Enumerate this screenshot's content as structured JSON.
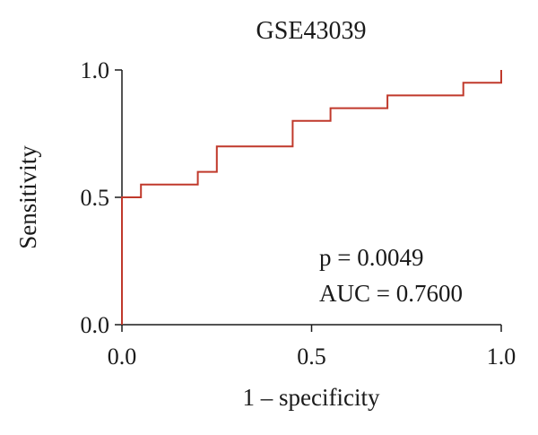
{
  "chart_data": {
    "type": "line",
    "title": "GSE43039",
    "xlabel": "1 – specificity",
    "ylabel": "Sensitivity",
    "xlim": [
      0,
      1
    ],
    "ylim": [
      0,
      1
    ],
    "x_ticks": [
      "0.0",
      "0.5",
      "1.0"
    ],
    "y_ticks": [
      "0.0",
      "0.5",
      "1.0"
    ],
    "grid": false,
    "series": [
      {
        "color": "#c0392b",
        "x": [
          0,
          0,
          0.05,
          0.05,
          0.2,
          0.2,
          0.25,
          0.25,
          0.45,
          0.45,
          0.55,
          0.55,
          0.7,
          0.7,
          0.9,
          0.9,
          1.0,
          1.0
        ],
        "y": [
          0,
          0.5,
          0.5,
          0.55,
          0.55,
          0.6,
          0.6,
          0.7,
          0.7,
          0.8,
          0.8,
          0.85,
          0.85,
          0.9,
          0.9,
          0.95,
          0.95,
          1.0
        ]
      }
    ],
    "annotations": [
      "p = 0.0049",
      "AUC = 0.7600"
    ]
  }
}
